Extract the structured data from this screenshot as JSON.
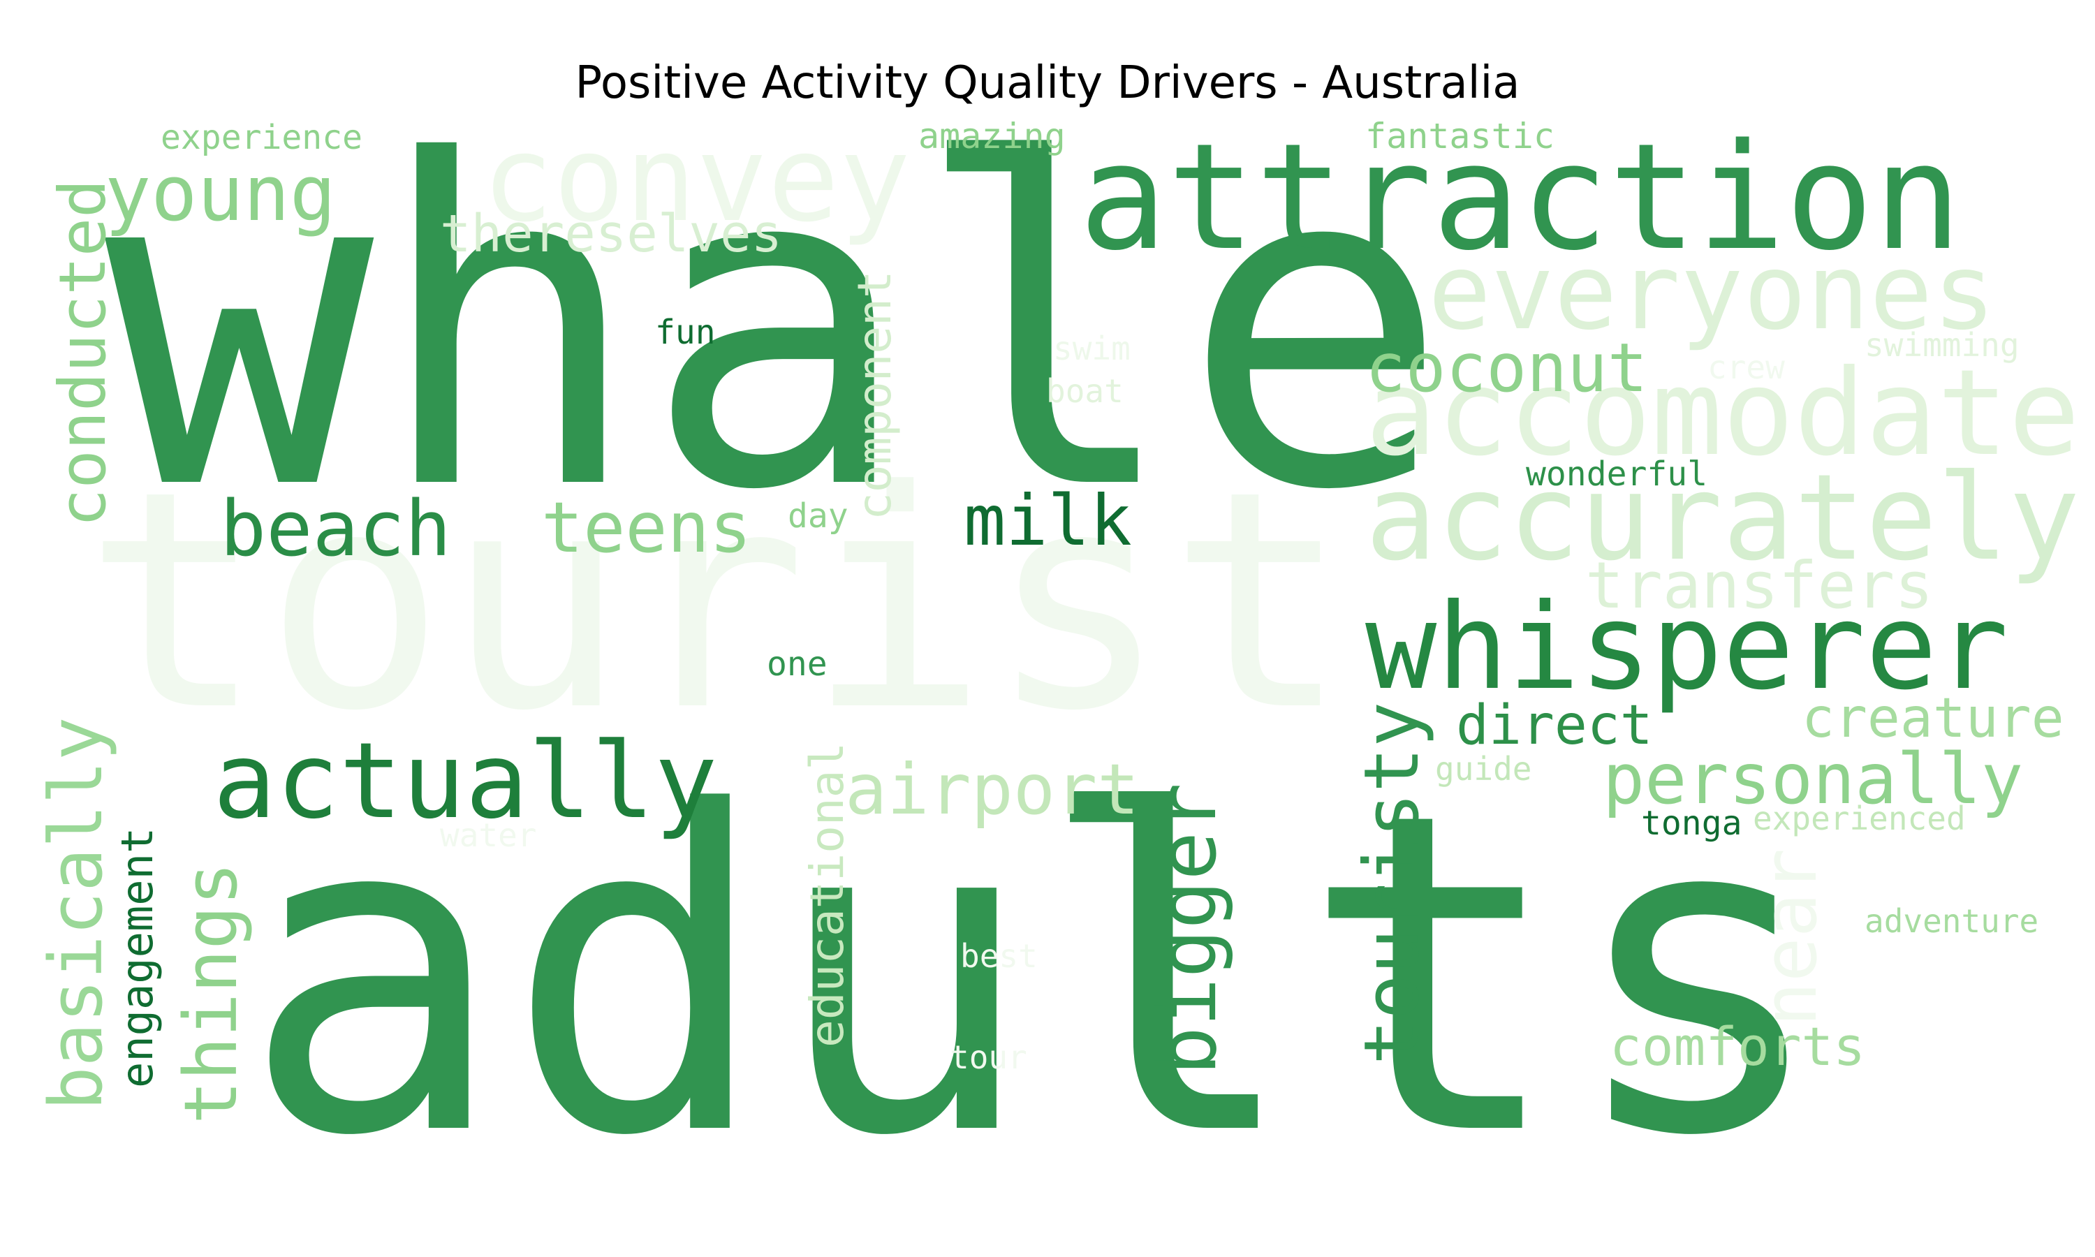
{
  "chart_data": {
    "type": "wordcloud",
    "title": "Positive Activity Quality Drivers - Australia",
    "words": [
      {
        "text": "tourist",
        "color": "#f1f9ef"
      },
      {
        "text": "whale",
        "color": "#319450"
      },
      {
        "text": "adults",
        "color": "#319450"
      },
      {
        "text": "attraction",
        "color": "#319450"
      },
      {
        "text": "convey",
        "color": "#eef8eb"
      },
      {
        "text": "everyones",
        "color": "#ddf1d7"
      },
      {
        "text": "accomodate",
        "color": "#e2f3dc"
      },
      {
        "text": "accurately",
        "color": "#d5eecf"
      },
      {
        "text": "whisperer",
        "color": "#258842"
      },
      {
        "text": "young",
        "color": "#8fd28c"
      },
      {
        "text": "conducted",
        "color": "#8fd28c"
      },
      {
        "text": "coconut",
        "color": "#8fd28c"
      },
      {
        "text": "thereselves",
        "color": "#d8efd2"
      },
      {
        "text": "actually",
        "color": "#1e7f3b"
      },
      {
        "text": "beach",
        "color": "#2a8d47"
      },
      {
        "text": "teens",
        "color": "#8fd28c"
      },
      {
        "text": "milk",
        "color": "#0f6c31"
      },
      {
        "text": "component",
        "color": "#d3edcc"
      },
      {
        "text": "transfers",
        "color": "#ddf1d7"
      },
      {
        "text": "airport",
        "color": "#c3e7b9"
      },
      {
        "text": "personally",
        "color": "#8fd28c"
      },
      {
        "text": "creature",
        "color": "#a6dc9f"
      },
      {
        "text": "direct",
        "color": "#2d9049"
      },
      {
        "text": "touristy",
        "color": "#319450"
      },
      {
        "text": "bigger",
        "color": "#319450"
      },
      {
        "text": "basically",
        "color": "#9ad897"
      },
      {
        "text": "things",
        "color": "#8fd28c"
      },
      {
        "text": "engagement",
        "color": "#0f6c31"
      },
      {
        "text": "educational",
        "color": "#c8e9bf"
      },
      {
        "text": "near",
        "color": "#f1f9ef"
      },
      {
        "text": "comforts",
        "color": "#a6dc9f"
      },
      {
        "text": "experience",
        "color": "#8fd28c"
      },
      {
        "text": "amazing",
        "color": "#8fd28c"
      },
      {
        "text": "fantastic",
        "color": "#8fd28c"
      },
      {
        "text": "fun",
        "color": "#0f6c31"
      },
      {
        "text": "swim",
        "color": "#eef8eb"
      },
      {
        "text": "boat",
        "color": "#e2f3dc"
      },
      {
        "text": "crew",
        "color": "#f1f9ef"
      },
      {
        "text": "swimming",
        "color": "#e2f3dc"
      },
      {
        "text": "wonderful",
        "color": "#2d9049"
      },
      {
        "text": "day",
        "color": "#8fd28c"
      },
      {
        "text": "one",
        "color": "#319450"
      },
      {
        "text": "guide",
        "color": "#c3e7b9"
      },
      {
        "text": "tonga",
        "color": "#0f6c31"
      },
      {
        "text": "experienced",
        "color": "#c3e7b9"
      },
      {
        "text": "adventure",
        "color": "#a6dc9f"
      },
      {
        "text": "water",
        "color": "#f1f9ef"
      },
      {
        "text": "best",
        "color": "#f1f9ef"
      },
      {
        "text": "tour",
        "color": "#f1f9ef"
      }
    ]
  }
}
